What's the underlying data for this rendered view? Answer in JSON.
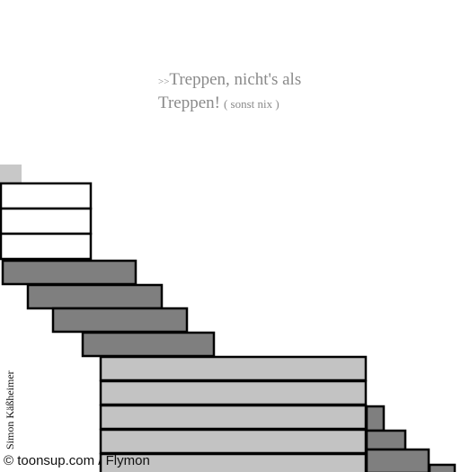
{
  "caption": {
    "prefix": ">>",
    "line1": "Treppen, nicht's als",
    "line2": "Treppen!",
    "aside": "( sonst nix )"
  },
  "credit": "© toonsup.com / Flymon",
  "signature": "Simon Käßheimer",
  "colors": {
    "white_step": "#ffffff",
    "dark_step": "#7f7f7f",
    "light_step": "#c3c3c3",
    "outline": "#000000",
    "caption": "#8a8a8a"
  }
}
